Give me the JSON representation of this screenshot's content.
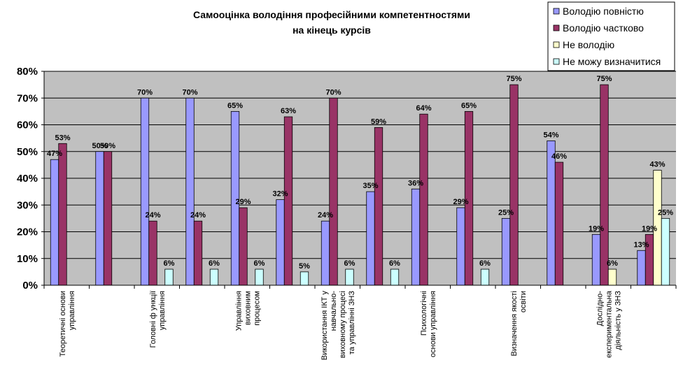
{
  "chart_data": {
    "type": "bar",
    "title_lines": [
      "Самооцінка володіння професійними компетентностями",
      "на кінець курсів"
    ],
    "xlabel": "",
    "ylabel": "",
    "ylim": [
      0,
      80
    ],
    "yticks": [
      "0%",
      "10%",
      "20%",
      "30%",
      "40%",
      "50%",
      "60%",
      "70%",
      "80%"
    ],
    "grid": true,
    "legend_position": "top-right",
    "plot_background": "#c0c0c0",
    "categories": [
      [
        "Теоретичні основи",
        "управління"
      ],
      [],
      [
        "Головні ф ункції",
        "управління"
      ],
      [],
      [
        "Управління",
        "виховним",
        "процесом"
      ],
      [],
      [
        "Використання ІКТ у",
        "навчально-",
        "виховному процесі",
        "та управлінні ЗНЗ"
      ],
      [],
      [
        "Психологічні",
        "основи управління"
      ],
      [],
      [
        "Визначення якості",
        "освіти"
      ],
      [],
      [
        "Дослідно-",
        "експериментальна",
        "діяльність у ЗНЗ"
      ],
      []
    ],
    "series": [
      {
        "name": "Володію повністю",
        "color": "#9999ff",
        "values": [
          47,
          50,
          70,
          70,
          65,
          32,
          24,
          35,
          36,
          29,
          25,
          54,
          19,
          13
        ]
      },
      {
        "name": "Володію частково",
        "color": "#993366",
        "values": [
          53,
          50,
          24,
          24,
          29,
          63,
          70,
          59,
          64,
          65,
          75,
          46,
          75,
          19
        ]
      },
      {
        "name": "Не володію",
        "color": "#ffffcc",
        "values": [
          null,
          null,
          null,
          null,
          null,
          null,
          null,
          null,
          null,
          null,
          null,
          null,
          6,
          43
        ]
      },
      {
        "name": "Не можу визначитися",
        "color": "#ccffff",
        "values": [
          null,
          null,
          6,
          6,
          6,
          5,
          6,
          6,
          null,
          6,
          null,
          null,
          null,
          25
        ]
      }
    ],
    "data_labels": [
      [
        "47%",
        "50%",
        "70%",
        "70%",
        "65%",
        "32%",
        "24%",
        "35%",
        "36%",
        "29%",
        "25%",
        "54%",
        "19%",
        "13%"
      ],
      [
        "53%",
        "50%",
        "24%",
        "24%",
        "29%",
        "63%",
        "70%",
        "59%",
        "64%",
        "65%",
        "75%",
        "46%",
        "75%",
        "19%"
      ],
      [
        null,
        null,
        null,
        null,
        null,
        null,
        null,
        null,
        null,
        null,
        null,
        null,
        "6%",
        "43%"
      ],
      [
        null,
        null,
        "6%",
        "6%",
        "6%",
        "5%",
        "6%",
        "6%",
        null,
        "6%",
        null,
        null,
        null,
        "25%"
      ]
    ]
  }
}
